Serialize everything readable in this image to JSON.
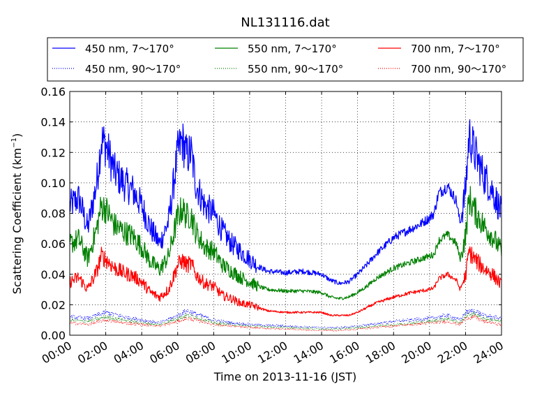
{
  "chart_data": {
    "type": "line",
    "title": "NL131116.dat",
    "xlabel": "Time on 2013-11-16 (JST)",
    "ylabel_main": "Scattering Coefficient (km",
    "ylabel_sup": "−1",
    "ylabel_tail": ")",
    "x_unit": "hours",
    "xlim": [
      0,
      24
    ],
    "ylim": [
      0,
      0.16
    ],
    "x_ticks": [
      0,
      2,
      4,
      6,
      8,
      10,
      12,
      14,
      16,
      18,
      20,
      22,
      24
    ],
    "x_tick_labels": [
      "00:00",
      "02:00",
      "04:00",
      "06:00",
      "08:00",
      "10:00",
      "12:00",
      "14:00",
      "16:00",
      "18:00",
      "20:00",
      "22:00",
      "24:00"
    ],
    "y_ticks": [
      0,
      0.02,
      0.04,
      0.06,
      0.08,
      0.1,
      0.12,
      0.14,
      0.16
    ],
    "y_tick_labels": [
      "0.00",
      "0.02",
      "0.04",
      "0.06",
      "0.08",
      "0.10",
      "0.12",
      "0.14",
      "0.16"
    ],
    "grid": true,
    "legend_position": "top, above plot",
    "series": [
      {
        "name": "450 nm, 7～170°",
        "color": "#0000ff",
        "style": "solid",
        "x": [
          0,
          0.5,
          1,
          1.5,
          1.75,
          2,
          2.5,
          3,
          3.5,
          4,
          4.5,
          5,
          5.5,
          6,
          6.25,
          6.5,
          6.75,
          7,
          7.5,
          8,
          8.5,
          9,
          9.5,
          10,
          10.5,
          11,
          12,
          13,
          14,
          14.5,
          15,
          15.5,
          16,
          16.5,
          17,
          18,
          19,
          19.5,
          20,
          20.25,
          20.5,
          21,
          21.5,
          21.7,
          22,
          22.2,
          22.5,
          23,
          23.5,
          24
        ],
        "y": [
          0.085,
          0.09,
          0.07,
          0.1,
          0.128,
          0.125,
          0.107,
          0.1,
          0.095,
          0.085,
          0.07,
          0.06,
          0.075,
          0.12,
          0.128,
          0.118,
          0.12,
          0.1,
          0.085,
          0.08,
          0.068,
          0.06,
          0.055,
          0.05,
          0.045,
          0.042,
          0.041,
          0.042,
          0.04,
          0.036,
          0.034,
          0.035,
          0.04,
          0.046,
          0.053,
          0.064,
          0.07,
          0.073,
          0.077,
          0.08,
          0.093,
          0.098,
          0.088,
          0.073,
          0.095,
          0.132,
          0.12,
          0.105,
          0.095,
          0.08
        ]
      },
      {
        "name": "550 nm, 7～170°",
        "color": "#008000",
        "style": "solid",
        "x": [
          0,
          0.5,
          1,
          1.5,
          1.75,
          2,
          2.5,
          3,
          3.5,
          4,
          4.5,
          5,
          5.5,
          6,
          6.25,
          6.5,
          6.75,
          7,
          7.5,
          8,
          8.5,
          9,
          9.5,
          10,
          10.5,
          11,
          12,
          13,
          14,
          14.5,
          15,
          15.5,
          16,
          16.5,
          17,
          18,
          19,
          19.5,
          20,
          20.25,
          20.5,
          21,
          21.5,
          21.7,
          22,
          22.2,
          22.5,
          23,
          23.5,
          24
        ],
        "y": [
          0.06,
          0.063,
          0.05,
          0.07,
          0.085,
          0.083,
          0.072,
          0.068,
          0.065,
          0.058,
          0.048,
          0.043,
          0.052,
          0.078,
          0.083,
          0.078,
          0.079,
          0.068,
          0.058,
          0.055,
          0.046,
          0.042,
          0.038,
          0.035,
          0.032,
          0.03,
          0.029,
          0.029,
          0.028,
          0.025,
          0.024,
          0.025,
          0.028,
          0.032,
          0.037,
          0.044,
          0.048,
          0.05,
          0.052,
          0.053,
          0.062,
          0.066,
          0.06,
          0.05,
          0.065,
          0.09,
          0.082,
          0.072,
          0.065,
          0.055
        ]
      },
      {
        "name": "700 nm, 7～170°",
        "color": "#ff0000",
        "style": "solid",
        "x": [
          0,
          0.5,
          1,
          1.5,
          1.75,
          2,
          2.5,
          3,
          3.5,
          4,
          4.5,
          5,
          5.5,
          6,
          6.25,
          6.5,
          6.75,
          7,
          7.5,
          8,
          8.5,
          9,
          9.5,
          10,
          10.5,
          11,
          12,
          13,
          14,
          14.5,
          15,
          15.5,
          16,
          16.5,
          17,
          18,
          19,
          19.5,
          20,
          20.25,
          20.5,
          21,
          21.5,
          21.7,
          22,
          22.2,
          22.5,
          23,
          23.5,
          24
        ],
        "y": [
          0.035,
          0.038,
          0.03,
          0.042,
          0.052,
          0.05,
          0.044,
          0.041,
          0.039,
          0.035,
          0.028,
          0.025,
          0.03,
          0.046,
          0.049,
          0.046,
          0.047,
          0.04,
          0.034,
          0.032,
          0.026,
          0.024,
          0.021,
          0.02,
          0.018,
          0.016,
          0.015,
          0.015,
          0.015,
          0.013,
          0.013,
          0.013,
          0.015,
          0.018,
          0.021,
          0.025,
          0.028,
          0.029,
          0.03,
          0.031,
          0.037,
          0.04,
          0.036,
          0.03,
          0.039,
          0.055,
          0.05,
          0.044,
          0.04,
          0.033
        ]
      },
      {
        "name": "450 nm, 90～170°",
        "color": "#0000ff",
        "style": "dotted",
        "x": [
          0,
          1,
          2,
          3,
          4,
          5,
          6,
          6.5,
          7,
          8,
          9,
          10,
          12,
          14,
          15,
          16,
          18,
          20,
          21,
          21.7,
          22,
          22.5,
          23,
          24
        ],
        "y": [
          0.012,
          0.011,
          0.015,
          0.012,
          0.01,
          0.008,
          0.013,
          0.016,
          0.014,
          0.01,
          0.008,
          0.007,
          0.006,
          0.005,
          0.005,
          0.006,
          0.009,
          0.011,
          0.013,
          0.01,
          0.015,
          0.016,
          0.013,
          0.011
        ]
      },
      {
        "name": "550 nm, 90～170°",
        "color": "#008000",
        "style": "dotted",
        "x": [
          0,
          1,
          2,
          3,
          4,
          5,
          6,
          6.5,
          7,
          8,
          9,
          10,
          12,
          14,
          15,
          16,
          18,
          20,
          21,
          21.7,
          22,
          22.5,
          23,
          24
        ],
        "y": [
          0.01,
          0.009,
          0.012,
          0.01,
          0.008,
          0.007,
          0.011,
          0.013,
          0.012,
          0.008,
          0.007,
          0.006,
          0.005,
          0.004,
          0.004,
          0.005,
          0.007,
          0.009,
          0.011,
          0.008,
          0.013,
          0.014,
          0.011,
          0.009
        ]
      },
      {
        "name": "700 nm, 90～170°",
        "color": "#ff0000",
        "style": "dotted",
        "x": [
          0,
          1,
          2,
          3,
          4,
          5,
          6,
          6.5,
          7,
          8,
          9,
          10,
          12,
          14,
          15,
          16,
          18,
          20,
          21,
          21.7,
          22,
          22.5,
          23,
          24
        ],
        "y": [
          0.008,
          0.007,
          0.01,
          0.008,
          0.007,
          0.006,
          0.009,
          0.011,
          0.01,
          0.007,
          0.006,
          0.005,
          0.004,
          0.003,
          0.003,
          0.004,
          0.006,
          0.008,
          0.009,
          0.007,
          0.011,
          0.012,
          0.009,
          0.007
        ]
      }
    ]
  }
}
